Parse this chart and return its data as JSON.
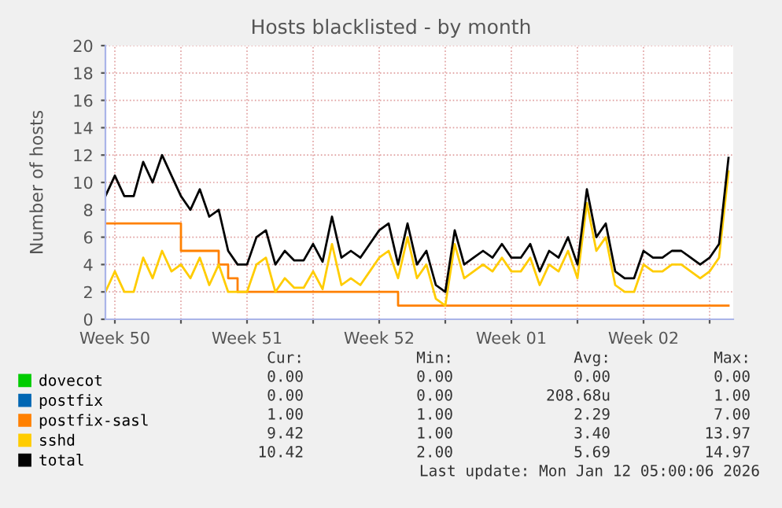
{
  "chart_data": {
    "type": "line",
    "title": "Hosts blacklisted - by month",
    "ylabel": "Number of hosts",
    "x": [
      "2025-12-11T00:00",
      "2025-12-11T12:00",
      "2025-12-12T00:00",
      "2025-12-12T12:00",
      "2025-12-13T00:00",
      "2025-12-13T12:00",
      "2025-12-14T00:00",
      "2025-12-14T12:00",
      "2025-12-15T00:00",
      "2025-12-15T12:00",
      "2025-12-16T00:00",
      "2025-12-16T12:00",
      "2025-12-17T00:00",
      "2025-12-17T12:00",
      "2025-12-18T00:00",
      "2025-12-18T12:00",
      "2025-12-19T00:00",
      "2025-12-19T12:00",
      "2025-12-20T00:00",
      "2025-12-20T12:00",
      "2025-12-21T00:00",
      "2025-12-21T12:00",
      "2025-12-22T00:00",
      "2025-12-22T12:00",
      "2025-12-23T00:00",
      "2025-12-23T12:00",
      "2025-12-24T00:00",
      "2025-12-24T12:00",
      "2025-12-25T00:00",
      "2025-12-25T12:00",
      "2025-12-26T00:00",
      "2025-12-26T12:00",
      "2025-12-27T00:00",
      "2025-12-27T12:00",
      "2025-12-28T00:00",
      "2025-12-28T12:00",
      "2025-12-29T00:00",
      "2025-12-29T12:00",
      "2025-12-30T00:00",
      "2025-12-30T12:00",
      "2025-12-31T00:00",
      "2025-12-31T12:00",
      "2026-01-01T00:00",
      "2026-01-01T12:00",
      "2026-01-02T00:00",
      "2026-01-02T12:00",
      "2026-01-03T00:00",
      "2026-01-03T12:00",
      "2026-01-04T00:00",
      "2026-01-04T12:00",
      "2026-01-05T00:00",
      "2026-01-05T12:00",
      "2026-01-06T00:00",
      "2026-01-06T12:00",
      "2026-01-07T00:00",
      "2026-01-07T12:00",
      "2026-01-08T00:00",
      "2026-01-08T12:00",
      "2026-01-09T00:00",
      "2026-01-09T12:00",
      "2026-01-10T00:00",
      "2026-01-10T12:00",
      "2026-01-11T00:00",
      "2026-01-11T12:00",
      "2026-01-12T00:00",
      "2026-01-12T12:00",
      "2026-01-13T00:00"
    ],
    "series": [
      {
        "name": "dovecot",
        "color": "#00cc00",
        "values": [
          null,
          null,
          null,
          null,
          null,
          null,
          null,
          null,
          null,
          null,
          null,
          null,
          null,
          null,
          null,
          null,
          null,
          null,
          null,
          null,
          null,
          null,
          null,
          null,
          null,
          null,
          null,
          null,
          null,
          null,
          null,
          null,
          null,
          null,
          null,
          null,
          null,
          null,
          null,
          null,
          null,
          null,
          null,
          null,
          null,
          null,
          null,
          null,
          null,
          null,
          null,
          null,
          null,
          null,
          null,
          null,
          null,
          null,
          null,
          null,
          null,
          null,
          null,
          null,
          null,
          null,
          null
        ]
      },
      {
        "name": "postfix",
        "color": "#0066b3",
        "values": [
          null,
          null,
          null,
          null,
          null,
          null,
          null,
          null,
          null,
          null,
          null,
          null,
          null,
          null,
          null,
          null,
          null,
          null,
          null,
          null,
          null,
          null,
          null,
          null,
          null,
          null,
          null,
          null,
          null,
          null,
          null,
          null,
          null,
          null,
          null,
          null,
          null,
          null,
          null,
          null,
          null,
          null,
          null,
          null,
          null,
          null,
          null,
          null,
          null,
          null,
          null,
          null,
          null,
          null,
          null,
          null,
          null,
          null,
          null,
          null,
          null,
          null,
          null,
          null,
          null,
          null,
          null
        ]
      },
      {
        "name": "postfix-sasl",
        "color": "#ff8000",
        "type": "step",
        "values": [
          7,
          7,
          7,
          7,
          7,
          7,
          7,
          7,
          5,
          5,
          5,
          5,
          4,
          3,
          2,
          2,
          2,
          2,
          2,
          2,
          2,
          2,
          2,
          2,
          2,
          2,
          2,
          2,
          2,
          2,
          2,
          1,
          1,
          1,
          1,
          1,
          1,
          1,
          1,
          1,
          1,
          1,
          1,
          1,
          1,
          1,
          1,
          1,
          1,
          1,
          1,
          1,
          1,
          1,
          1,
          1,
          1,
          1,
          1,
          1,
          1,
          1,
          1,
          1,
          1,
          1,
          1
        ]
      },
      {
        "name": "sshd",
        "color": "#ffcc00",
        "values": [
          2,
          3.5,
          2,
          2,
          4.5,
          3,
          5,
          3.5,
          4,
          3,
          4.5,
          2.5,
          4,
          2,
          2,
          2,
          4,
          4.5,
          2,
          3,
          2.3,
          2.3,
          3.5,
          2.2,
          5.5,
          2.5,
          3,
          2.5,
          3.5,
          4.5,
          5,
          3,
          6,
          3,
          4,
          1.5,
          1,
          5.5,
          3,
          3.5,
          4,
          3.5,
          4.5,
          3.5,
          3.5,
          4.5,
          2.5,
          4,
          3.5,
          5,
          3,
          8.5,
          5,
          6,
          2.5,
          2,
          2,
          4,
          3.5,
          3.5,
          4,
          4,
          3.5,
          3,
          3.5,
          4.5,
          10.8
        ]
      },
      {
        "name": "total",
        "color": "#000000",
        "values": [
          9,
          10.5,
          9,
          9,
          11.5,
          10,
          12,
          10.5,
          9,
          8,
          9.5,
          7.5,
          8,
          5,
          4,
          4,
          6,
          6.5,
          4,
          5,
          4.3,
          4.3,
          5.5,
          4.2,
          7.5,
          4.5,
          5,
          4.5,
          5.5,
          6.5,
          7,
          4,
          7,
          4,
          5,
          2.5,
          2,
          6.5,
          4,
          4.5,
          5,
          4.5,
          5.5,
          4.5,
          4.5,
          5.5,
          3.5,
          5,
          4.5,
          6,
          4,
          9.5,
          6,
          7,
          3.5,
          3,
          3,
          5,
          4.5,
          4.5,
          5,
          5,
          4.5,
          4,
          4.5,
          5.5,
          11.8
        ]
      }
    ],
    "xlim": [
      "2025-12-11T00:00",
      "2026-01-13T06:00"
    ],
    "xticks": [
      {
        "value": "2025-12-11T12:00",
        "label": "Week 50"
      },
      {
        "value": "2025-12-15T00:00",
        "label": null
      },
      {
        "value": "2025-12-18T12:00",
        "label": "Week 51"
      },
      {
        "value": "2025-12-22T00:00",
        "label": null
      },
      {
        "value": "2025-12-25T12:00",
        "label": "Week 52"
      },
      {
        "value": "2025-12-29T00:00",
        "label": null
      },
      {
        "value": "2026-01-01T12:00",
        "label": "Week 01"
      },
      {
        "value": "2026-01-05T00:00",
        "label": null
      },
      {
        "value": "2026-01-08T12:00",
        "label": "Week 02"
      },
      {
        "value": "2026-01-12T00:00",
        "label": null
      }
    ],
    "ylim": [
      0,
      20
    ],
    "yticks": [
      0,
      2,
      4,
      6,
      8,
      10,
      12,
      14,
      16,
      18,
      20
    ],
    "grid": true,
    "legend": "bottom left",
    "annotations": [
      "Cur:",
      "Min:",
      "Avg:",
      "Max:",
      "0.00",
      "0.00",
      "0.00",
      "0.00",
      "0.00",
      "0.00",
      "208.68u",
      "1.00",
      "1.00",
      "1.00",
      "2.29",
      "7.00",
      "9.42",
      "1.00",
      "3.40",
      "13.97",
      "10.42",
      "2.00",
      "5.69",
      "14.97",
      "Last update: Mon Jan 12 05:00:06 2026"
    ]
  }
}
